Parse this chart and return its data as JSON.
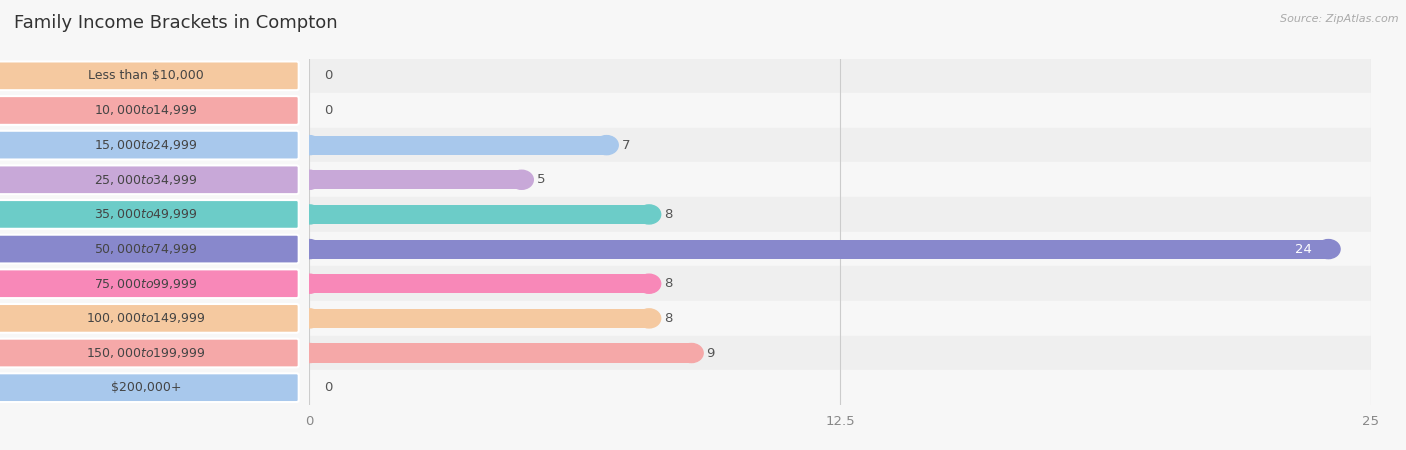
{
  "title": "Family Income Brackets in Compton",
  "source": "Source: ZipAtlas.com",
  "categories": [
    "Less than $10,000",
    "$10,000 to $14,999",
    "$15,000 to $24,999",
    "$25,000 to $34,999",
    "$35,000 to $49,999",
    "$50,000 to $74,999",
    "$75,000 to $99,999",
    "$100,000 to $149,999",
    "$150,000 to $199,999",
    "$200,000+"
  ],
  "values": [
    0,
    0,
    7,
    5,
    8,
    24,
    8,
    8,
    9,
    0
  ],
  "bar_colors": [
    "#F5C9A0",
    "#F5A8A8",
    "#A8C8EC",
    "#C8A8D8",
    "#6CCCC8",
    "#8888CC",
    "#F888B8",
    "#F5C9A0",
    "#F5A8A8",
    "#A8C8EC"
  ],
  "background_color": "#f7f7f7",
  "row_bg_even": "#efefef",
  "row_bg_odd": "#f7f7f7",
  "xlim": [
    0,
    25
  ],
  "xticks": [
    0,
    12.5,
    25
  ],
  "title_fontsize": 13,
  "bar_height": 0.55,
  "label_fontsize": 9.5
}
